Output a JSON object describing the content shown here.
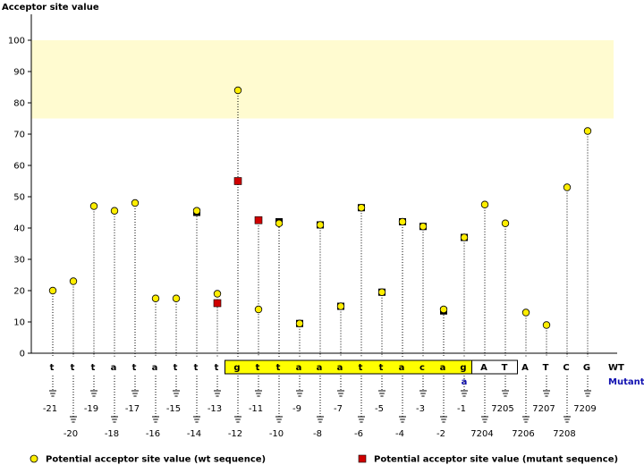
{
  "chart_data": {
    "type": "scatter",
    "title": "Acceptor site value",
    "ylabel": "Acceptor site value",
    "ylim": [
      0,
      100
    ],
    "yticks": [
      0,
      10,
      20,
      30,
      40,
      50,
      60,
      70,
      80,
      90,
      100
    ],
    "grid": false,
    "legend_position": "bottom",
    "row_labels": {
      "wt": "WT",
      "mutant": "Mutant"
    },
    "colors": {
      "wt_marker": "#ffee00",
      "mutant_marker": "#d00000",
      "highlight_band": "#fffbd0",
      "box_fill": "#ffff00",
      "mutant_text": "#1010b0"
    },
    "highlight_band": {
      "from": 75,
      "to": 100
    },
    "positions": [
      {
        "label": "-21",
        "base": "t",
        "mutant": "",
        "wt": 20,
        "mut": null,
        "box": "none"
      },
      {
        "label": "-20",
        "base": "t",
        "mutant": "",
        "wt": 23,
        "mut": null,
        "box": "none"
      },
      {
        "label": "-19",
        "base": "t",
        "mutant": "",
        "wt": 47,
        "mut": null,
        "box": "none"
      },
      {
        "label": "-18",
        "base": "a",
        "mutant": "",
        "wt": 45.5,
        "mut": null,
        "box": "none"
      },
      {
        "label": "-17",
        "base": "t",
        "mutant": "",
        "wt": 48,
        "mut": null,
        "box": "none"
      },
      {
        "label": "-16",
        "base": "a",
        "mutant": "",
        "wt": 17.5,
        "mut": null,
        "box": "none"
      },
      {
        "label": "-15",
        "base": "t",
        "mutant": "",
        "wt": 17.5,
        "mut": null,
        "box": "none"
      },
      {
        "label": "-14",
        "base": "t",
        "mutant": "",
        "wt": 45.5,
        "mut": 45,
        "box": "none"
      },
      {
        "label": "-13",
        "base": "t",
        "mutant": "",
        "wt": 19,
        "mut": 16,
        "box": "none"
      },
      {
        "label": "-12",
        "base": "g",
        "mutant": "",
        "wt": 84,
        "mut": 55,
        "box": "intron"
      },
      {
        "label": "-11",
        "base": "t",
        "mutant": "",
        "wt": 14,
        "mut": 42.5,
        "box": "intron"
      },
      {
        "label": "-10",
        "base": "t",
        "mutant": "",
        "wt": 41.5,
        "mut": 42,
        "box": "intron"
      },
      {
        "label": "-9",
        "base": "a",
        "mutant": "",
        "wt": 9.5,
        "mut": 9.5,
        "box": "intron"
      },
      {
        "label": "-8",
        "base": "a",
        "mutant": "",
        "wt": 41,
        "mut": 41,
        "box": "intron"
      },
      {
        "label": "-7",
        "base": "a",
        "mutant": "",
        "wt": 15,
        "mut": 15,
        "box": "intron"
      },
      {
        "label": "-6",
        "base": "t",
        "mutant": "",
        "wt": 46.5,
        "mut": 46.5,
        "box": "intron"
      },
      {
        "label": "-5",
        "base": "t",
        "mutant": "",
        "wt": 19.5,
        "mut": 19.5,
        "box": "intron"
      },
      {
        "label": "-4",
        "base": "a",
        "mutant": "",
        "wt": 42,
        "mut": 42,
        "box": "intron"
      },
      {
        "label": "-3",
        "base": "c",
        "mutant": "",
        "wt": 40.5,
        "mut": 40.5,
        "box": "intron"
      },
      {
        "label": "-2",
        "base": "a",
        "mutant": "",
        "wt": 14,
        "mut": 13.5,
        "box": "intron"
      },
      {
        "label": "-1",
        "base": "g",
        "mutant": "a",
        "wt": 37,
        "mut": 37,
        "box": "intron"
      },
      {
        "label": "7204",
        "base": "A",
        "mutant": "",
        "wt": 47.5,
        "mut": null,
        "box": "exon"
      },
      {
        "label": "7205",
        "base": "T",
        "mutant": "",
        "wt": 41.5,
        "mut": null,
        "box": "exon"
      },
      {
        "label": "7206",
        "base": "A",
        "mutant": "",
        "wt": 13,
        "mut": null,
        "box": "none"
      },
      {
        "label": "7207",
        "base": "T",
        "mutant": "",
        "wt": 9,
        "mut": null,
        "box": "none"
      },
      {
        "label": "7208",
        "base": "C",
        "mutant": "",
        "wt": 53,
        "mut": null,
        "box": "none"
      },
      {
        "label": "7209",
        "base": "G",
        "mutant": "",
        "wt": 71,
        "mut": null,
        "box": "none"
      }
    ],
    "legend": [
      {
        "name": "Potential acceptor site value (wt sequence)",
        "marker": "circle"
      },
      {
        "name": "Potential acceptor site value (mutant sequence)",
        "marker": "square"
      }
    ]
  }
}
